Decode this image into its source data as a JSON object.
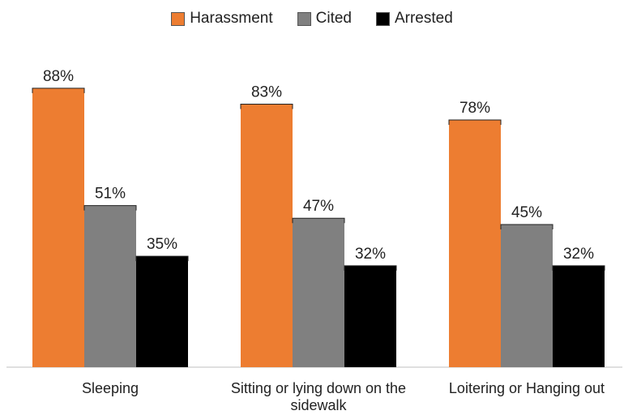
{
  "chart_data": {
    "type": "bar",
    "categories": [
      "Sleeping",
      "Sitting or lying down on the sidewalk",
      "Loitering or Hanging out"
    ],
    "category_lines": [
      [
        "Sleeping"
      ],
      [
        "Sitting or lying down on the",
        "sidewalk"
      ],
      [
        "Loitering or Hanging out"
      ]
    ],
    "series": [
      {
        "name": "Harassment",
        "values": [
          88,
          83,
          78
        ],
        "labels": [
          "88%",
          "83%",
          "78%"
        ],
        "color": "#ED7D31"
      },
      {
        "name": "Cited",
        "values": [
          51,
          47,
          45
        ],
        "labels": [
          "51%",
          "47%",
          "45%"
        ],
        "color": "#808080"
      },
      {
        "name": "Arrested",
        "values": [
          35,
          32,
          32
        ],
        "labels": [
          "35%",
          "32%",
          "32%"
        ],
        "color": "#000000"
      }
    ],
    "ylim": [
      0,
      100
    ],
    "grid": false,
    "legend_position": "top-center",
    "title": "",
    "xlabel": "",
    "ylabel": ""
  }
}
